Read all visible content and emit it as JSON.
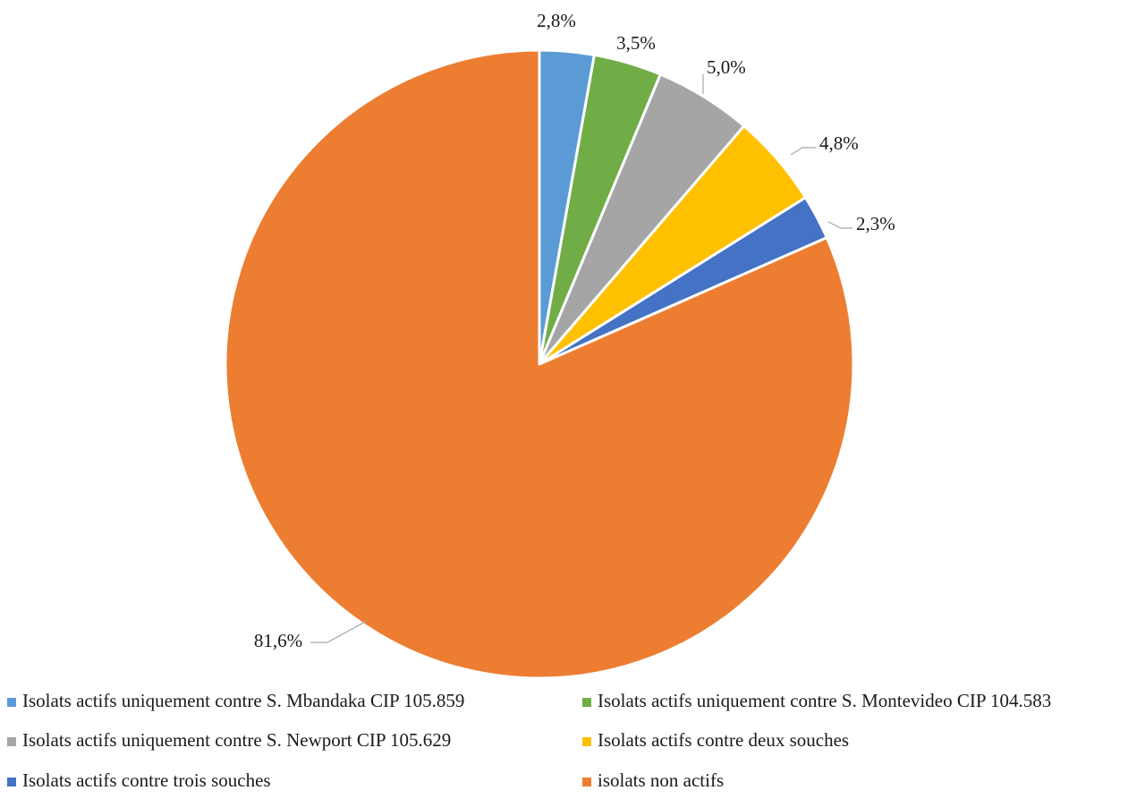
{
  "chart_data": {
    "type": "pie",
    "title": "",
    "labels": [
      "Isolats actifs uniquement contre S. Mbandaka CIP 105.859",
      "Isolats actifs uniquement contre S. Montevideo CIP 104.583",
      "Isolats actifs uniquement contre S. Newport CIP 105.629",
      "Isolats actifs contre deux souches",
      "Isolats actifs contre trois souches",
      "isolats non actifs"
    ],
    "values": [
      2.8,
      3.5,
      5.0,
      4.8,
      2.3,
      81.6
    ],
    "data_labels": [
      "2,8%",
      "3,5%",
      "5,0%",
      "4,8%",
      "2,3%",
      "81,6%"
    ],
    "colors": [
      "#5b9bd5",
      "#70ad47",
      "#a5a5a5",
      "#ffc000",
      "#4472c4",
      "#ed7d31"
    ],
    "start_angle": "12 o'clock",
    "direction": "clockwise",
    "legend": {
      "position": "bottom",
      "columns": 2
    },
    "data_label_position": "outside-end with leader lines"
  }
}
